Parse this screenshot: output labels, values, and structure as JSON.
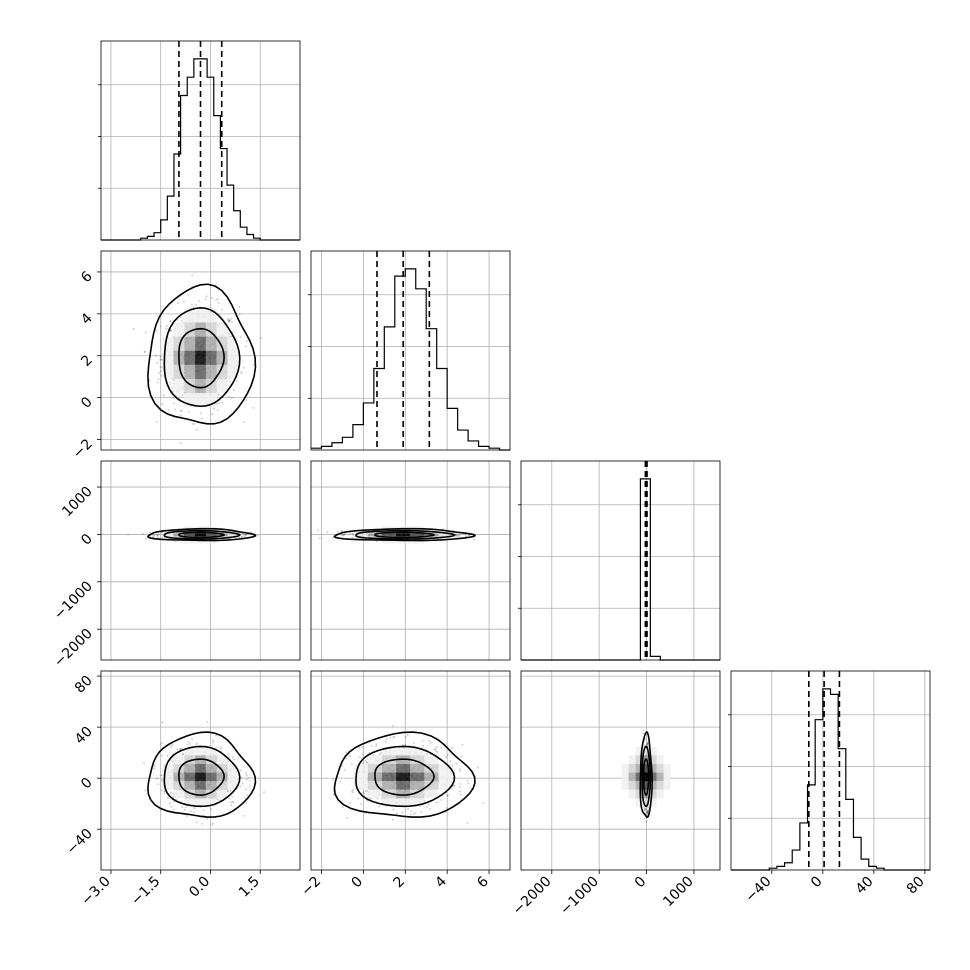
{
  "chart_data": {
    "type": "corner",
    "parameters": [
      {
        "range": [
          -3.3,
          2.7
        ],
        "ticks": [
          -3.0,
          -1.5,
          0.0,
          1.5
        ],
        "tick_labels": [
          "−3.0",
          "−1.5",
          "0.0",
          "1.5"
        ],
        "center": -0.3,
        "sd": 0.58,
        "quantiles": [
          -0.95,
          -0.3,
          0.34
        ]
      },
      {
        "range": [
          -2.5,
          7.0
        ],
        "ticks": [
          -2,
          0,
          2,
          4,
          6
        ],
        "tick_labels": [
          "−2",
          "0",
          "2",
          "4",
          "6"
        ],
        "center": 1.9,
        "sd": 1.2,
        "quantiles": [
          0.65,
          1.9,
          3.15
        ]
      },
      {
        "range": [
          -2650,
          1550
        ],
        "ticks": [
          -2000,
          -1000,
          0,
          1000
        ],
        "tick_labels": [
          "−2000",
          "−1000",
          "0",
          "1000"
        ],
        "center": -10,
        "sd": 45,
        "quantiles": [
          -25,
          -8,
          10
        ]
      },
      {
        "range": [
          -72,
          84
        ],
        "ticks": [
          -40,
          0,
          40,
          80
        ],
        "tick_labels": [
          "−40",
          "0",
          "40",
          "80"
        ],
        "center": 1,
        "sd": 12,
        "quantiles": [
          -11,
          1,
          13
        ]
      }
    ],
    "histograms": [
      {
        "param": 0,
        "bin_edges": [
          -3.3,
          -3.1,
          -2.9,
          -2.7,
          -2.5,
          -2.3,
          -2.1,
          -1.9,
          -1.7,
          -1.5,
          -1.3,
          -1.1,
          -0.9,
          -0.7,
          -0.5,
          -0.3,
          -0.1,
          0.1,
          0.3,
          0.5,
          0.7,
          0.9,
          1.1,
          1.3,
          1.5,
          1.7,
          1.9,
          2.1,
          2.3,
          2.5,
          2.7
        ],
        "counts": [
          0,
          0,
          0,
          0,
          0,
          0,
          1,
          2,
          4,
          11,
          24,
          47,
          79,
          89,
          99,
          99,
          89,
          68,
          50,
          30,
          16,
          7,
          3,
          1,
          0,
          0,
          0,
          0,
          0,
          0
        ]
      },
      {
        "param": 1,
        "bin_edges": [
          -2.5,
          -2.0,
          -1.5,
          -1.0,
          -0.5,
          0.0,
          0.5,
          1.0,
          1.5,
          2.0,
          2.5,
          3.0,
          3.5,
          4.0,
          4.5,
          5.0,
          5.5,
          6.0,
          6.5,
          7.0
        ],
        "counts": [
          1,
          2,
          4,
          7,
          14,
          26,
          45,
          68,
          96,
          100,
          89,
          67,
          45,
          23,
          11,
          5,
          2,
          1,
          0
        ]
      },
      {
        "param": 2,
        "bin_edges": [
          -2650,
          -2440,
          -2230,
          -2020,
          -1810,
          -1600,
          -1390,
          -1180,
          -970,
          -760,
          -550,
          -340,
          -130,
          80,
          290,
          500,
          710,
          920,
          1130,
          1340,
          1550
        ],
        "counts": [
          0,
          0,
          0,
          0,
          0,
          0,
          0,
          0,
          0,
          0,
          0,
          0,
          100,
          2,
          0,
          0,
          0,
          0,
          0,
          0
        ]
      },
      {
        "param": 3,
        "bin_edges": [
          -72,
          -66,
          -60,
          -54,
          -48,
          -42,
          -36,
          -30,
          -24,
          -18,
          -12,
          -6,
          0,
          6,
          12,
          18,
          24,
          30,
          36,
          42,
          48,
          54,
          60,
          66,
          72,
          78,
          84
        ],
        "counts": [
          0,
          0,
          0,
          0,
          0,
          1,
          2,
          4,
          11,
          26,
          47,
          83,
          100,
          97,
          67,
          39,
          18,
          6,
          2,
          1,
          0,
          0,
          0,
          0,
          0,
          0
        ]
      }
    ]
  }
}
